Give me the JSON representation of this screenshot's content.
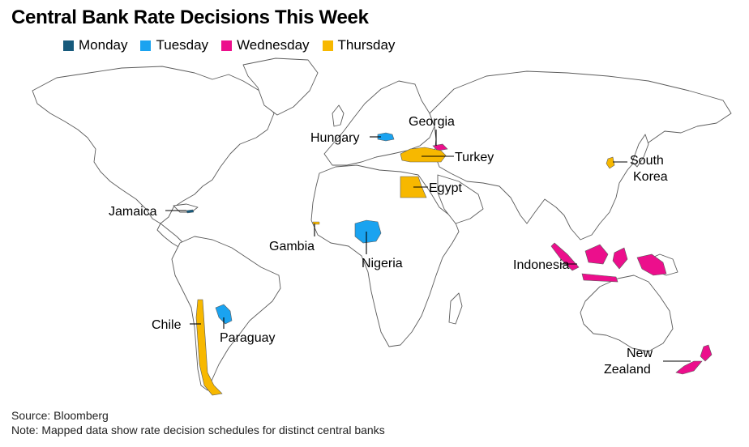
{
  "title": "Central Bank Rate Decisions This Week",
  "legend": [
    {
      "label": "Monday",
      "color": "#175a7c"
    },
    {
      "label": "Tuesday",
      "color": "#1aa3f0"
    },
    {
      "label": "Wednesday",
      "color": "#ec0f8c"
    },
    {
      "label": "Thursday",
      "color": "#f7b800"
    }
  ],
  "countries": {
    "georgia": {
      "name": "Georgia",
      "day": "Wednesday"
    },
    "hungary": {
      "name": "Hungary",
      "day": "Tuesday"
    },
    "turkey": {
      "name": "Turkey",
      "day": "Thursday"
    },
    "south_korea": {
      "line1": "South",
      "line2": "Korea",
      "day": "Thursday"
    },
    "egypt": {
      "name": "Egypt",
      "day": "Thursday"
    },
    "jamaica": {
      "name": "Jamaica",
      "day": "Monday"
    },
    "gambia": {
      "name": "Gambia",
      "day": "Thursday"
    },
    "nigeria": {
      "name": "Nigeria",
      "day": "Tuesday"
    },
    "indonesia": {
      "name": "Indonesia",
      "day": "Wednesday"
    },
    "chile": {
      "name": "Chile",
      "day": "Thursday"
    },
    "paraguay": {
      "name": "Paraguay",
      "day": "Tuesday"
    },
    "new_zealand": {
      "line1": "New",
      "line2": "Zealand",
      "day": "Wednesday"
    }
  },
  "footer": {
    "source": "Source: Bloomberg",
    "note": "Note: Mapped data show rate decision schedules for distinct central banks"
  }
}
